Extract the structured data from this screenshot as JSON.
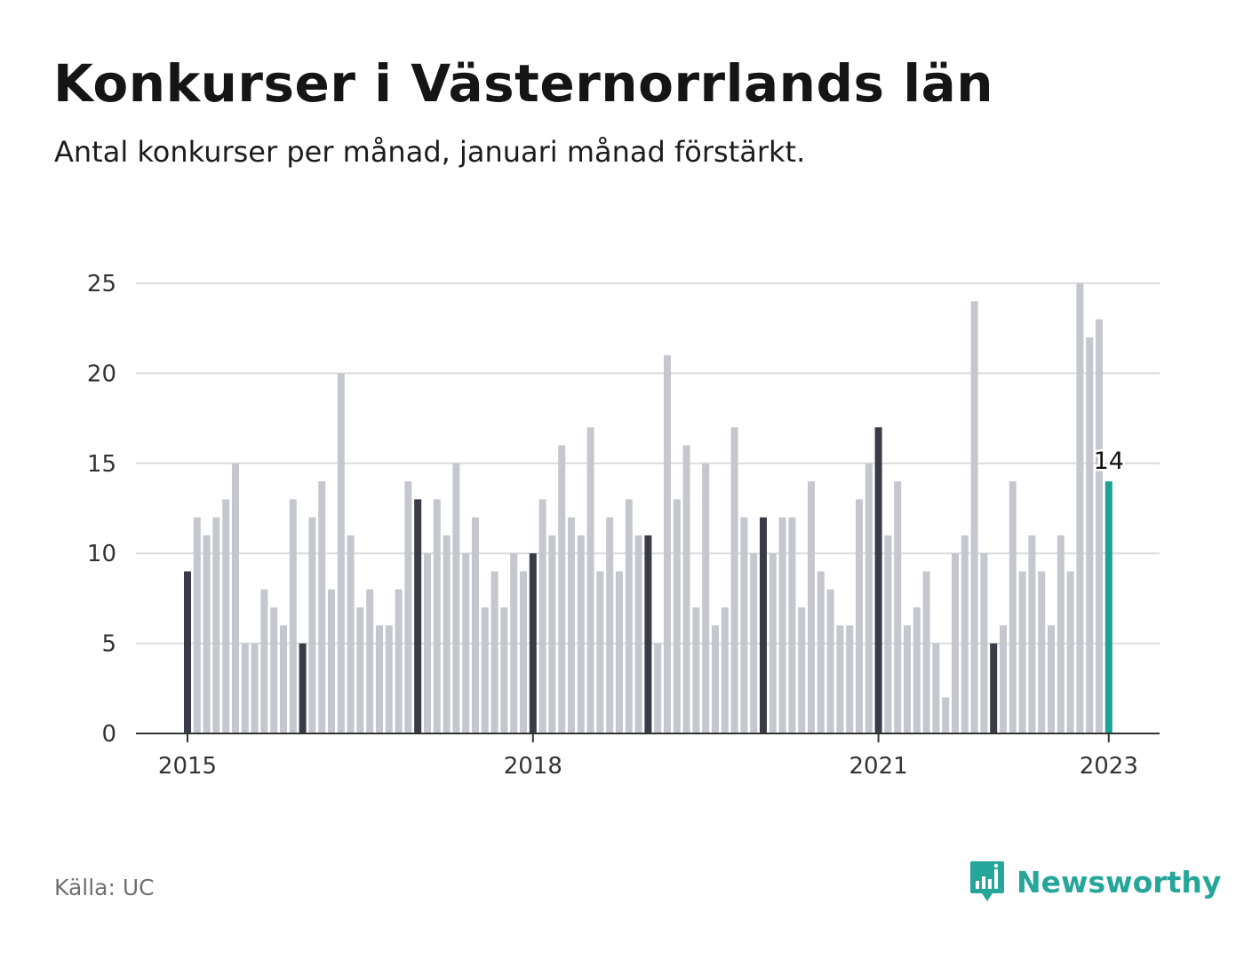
{
  "title": "Konkurser i Västernorrlands län",
  "subtitle": "Antal konkurser per månad, januari månad förstärkt.",
  "source": "Källa: UC",
  "brand": "Newsworthy",
  "colors": {
    "january": "#3b3b47",
    "other": "#c6c6ce",
    "highlight": "#1aa394",
    "grid": "#dcdcdc",
    "axis": "#333333",
    "brand": "#26a69a"
  },
  "chart_data": {
    "type": "bar",
    "title": "Konkurser i Västernorrlands län",
    "subtitle": "Antal konkurser per månad, januari månad förstärkt.",
    "xlabel": "",
    "ylabel": "",
    "ylim": [
      0,
      25
    ],
    "y_ticks": [
      0,
      5,
      10,
      15,
      20,
      25
    ],
    "x_tick_labels": [
      {
        "label": "2015",
        "index": 0
      },
      {
        "label": "2018",
        "index": 36
      },
      {
        "label": "2021",
        "index": 72
      },
      {
        "label": "2023",
        "index": 96
      }
    ],
    "start": "2015-01",
    "end": "2023-01",
    "values": [
      9,
      12,
      11,
      12,
      13,
      15,
      5,
      5,
      8,
      7,
      6,
      13,
      5,
      12,
      14,
      8,
      20,
      11,
      7,
      8,
      6,
      6,
      8,
      14,
      13,
      10,
      13,
      11,
      15,
      10,
      12,
      7,
      9,
      7,
      10,
      9,
      10,
      13,
      11,
      16,
      12,
      11,
      17,
      9,
      12,
      9,
      13,
      11,
      11,
      5,
      21,
      13,
      16,
      7,
      15,
      6,
      7,
      17,
      12,
      10,
      12,
      10,
      12,
      12,
      7,
      14,
      9,
      8,
      6,
      6,
      13,
      15,
      17,
      11,
      14,
      6,
      7,
      9,
      5,
      2,
      10,
      11,
      24,
      10,
      5,
      6,
      14,
      9,
      11,
      9,
      6,
      11,
      9,
      25,
      22,
      23,
      14
    ],
    "highlight": {
      "index": 96,
      "label": "14"
    }
  }
}
